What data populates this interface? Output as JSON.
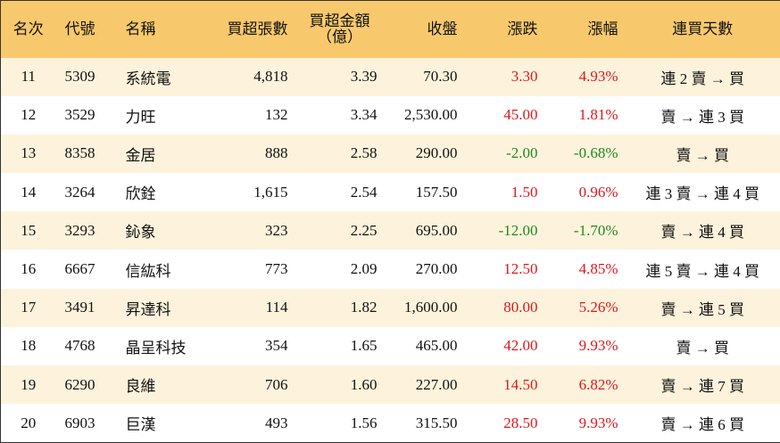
{
  "table": {
    "columns": [
      "名次",
      "代號",
      "名稱",
      "買超張數",
      "買超金額\n（億）",
      "收盤",
      "漲跌",
      "漲幅",
      "連買天數"
    ],
    "rows": [
      [
        "11",
        "5309",
        "系統電",
        "4,818",
        "3.39",
        "70.30",
        "3.30",
        "4.93%",
        "連 2 賣 → 買"
      ],
      [
        "12",
        "3529",
        "力旺",
        "132",
        "3.34",
        "2,530.00",
        "45.00",
        "1.81%",
        "賣 → 連 3 買"
      ],
      [
        "13",
        "8358",
        "金居",
        "888",
        "2.58",
        "290.00",
        "-2.00",
        "-0.68%",
        "賣 → 買"
      ],
      [
        "14",
        "3264",
        "欣銓",
        "1,615",
        "2.54",
        "157.50",
        "1.50",
        "0.96%",
        "連 3 賣 → 連 4 買"
      ],
      [
        "15",
        "3293",
        "鈊象",
        "323",
        "2.25",
        "695.00",
        "-12.00",
        "-1.70%",
        "賣 → 連 4 買"
      ],
      [
        "16",
        "6667",
        "信紘科",
        "773",
        "2.09",
        "270.00",
        "12.50",
        "4.85%",
        "連 5 賣 → 連 4 買"
      ],
      [
        "17",
        "3491",
        "昇達科",
        "114",
        "1.82",
        "1,600.00",
        "80.00",
        "5.26%",
        "賣 → 連 5 買"
      ],
      [
        "18",
        "4768",
        "晶呈科技",
        "354",
        "1.65",
        "465.00",
        "42.00",
        "9.93%",
        "賣 → 買"
      ],
      [
        "19",
        "6290",
        "良維",
        "706",
        "1.60",
        "227.00",
        "14.50",
        "6.82%",
        "賣 → 連 7 買"
      ],
      [
        "20",
        "6903",
        "巨漢",
        "493",
        "1.56",
        "315.50",
        "28.50",
        "9.93%",
        "賣 → 連 6 買"
      ]
    ]
  }
}
